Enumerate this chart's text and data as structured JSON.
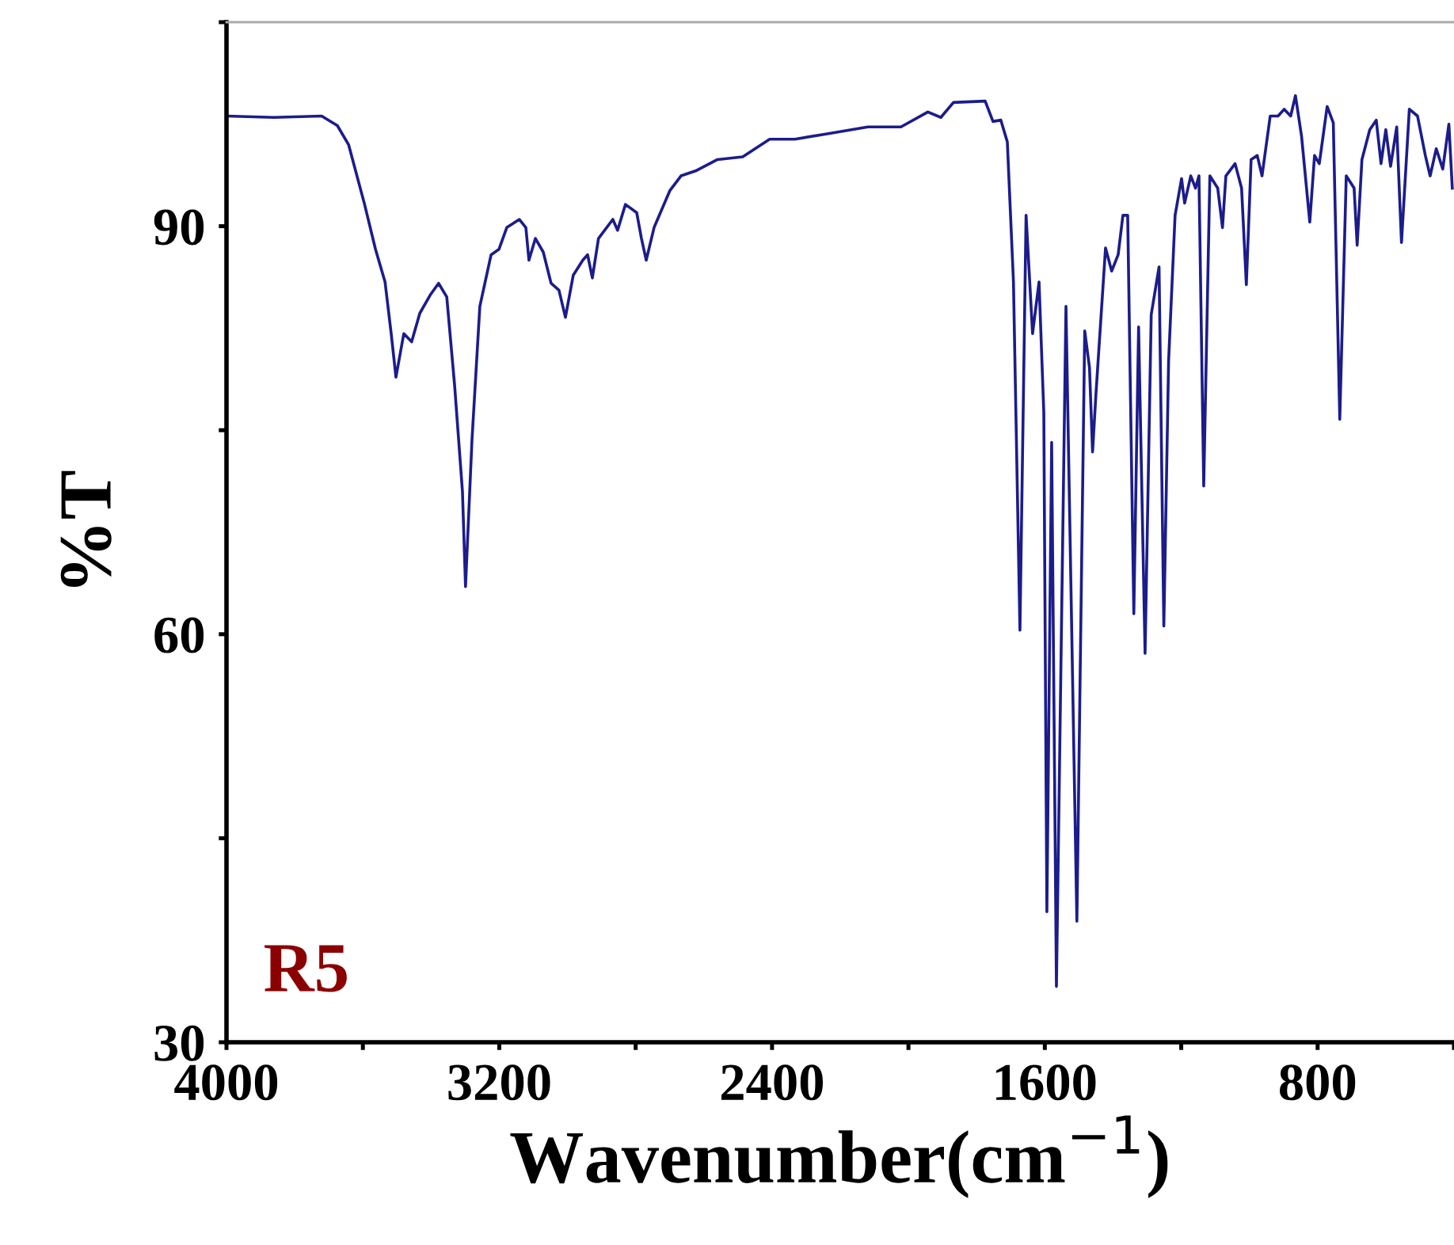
{
  "chart_data": {
    "type": "line",
    "xlabel": "Wavenumber(cm$^{−1}$)",
    "ylabel": "%T",
    "annotations": [
      "R5"
    ],
    "xlim": [
      4000,
      400
    ],
    "ylim": [
      30,
      105
    ],
    "xticks": [
      4000,
      {
        "value": 3600,
        "label": null
      },
      3200,
      {
        "value": 2800,
        "label": null
      },
      2400,
      {
        "value": 2000,
        "label": null
      },
      1600,
      {
        "value": 1200,
        "label": null
      },
      800,
      {
        "value": 400,
        "label": null
      }
    ],
    "yticks": [
      30,
      {
        "value": 45,
        "label": null
      },
      60,
      {
        "value": 75,
        "label": null
      },
      90,
      {
        "value": 105,
        "label": null
      }
    ],
    "grid": false,
    "legend": false,
    "marker": "none",
    "line_style": "solid",
    "series": [
      {
        "color": "#1c1c8c",
        "x": [
          4000,
          3861,
          3721,
          3675,
          3642,
          3596,
          3563,
          3535,
          3517,
          3503,
          3480,
          3457,
          3433,
          3401,
          3378,
          3354,
          3331,
          3308,
          3299,
          3280,
          3257,
          3224,
          3201,
          3178,
          3141,
          3122,
          3113,
          3094,
          3071,
          3048,
          3025,
          3006,
          2983,
          2955,
          2941,
          2927,
          2909,
          2867,
          2853,
          2830,
          2797,
          2783,
          2769,
          2746,
          2700,
          2667,
          2621,
          2560,
          2486,
          2407,
          2333,
          2235,
          2119,
          2022,
          1943,
          1905,
          1868,
          1775,
          1752,
          1729,
          1710,
          1692,
          1673,
          1655,
          1636,
          1617,
          1603,
          1594,
          1580,
          1566,
          1538,
          1506,
          1483,
          1469,
          1460,
          1450,
          1422,
          1404,
          1385,
          1371,
          1357,
          1339,
          1325,
          1306,
          1288,
          1265,
          1251,
          1237,
          1218,
          1199,
          1190,
          1172,
          1158,
          1148,
          1134,
          1116,
          1093,
          1079,
          1069,
          1042,
          1023,
          1009,
          995,
          977,
          963,
          939,
          916,
          898,
          879,
          865,
          847,
          823,
          809,
          795,
          772,
          754,
          735,
          716,
          693,
          684,
          670,
          647,
          628,
          614,
          600,
          586,
          568,
          554,
          531,
          507,
          484,
          470,
          452,
          433,
          415,
          405
        ],
        "values": [
          98.1,
          98.0,
          98.1,
          97.4,
          96.0,
          91.7,
          88.3,
          85.9,
          82.1,
          78.9,
          82.1,
          81.5,
          83.6,
          85.0,
          85.8,
          84.8,
          78.3,
          70.5,
          63.5,
          74.3,
          84.1,
          87.9,
          88.3,
          89.9,
          90.5,
          89.9,
          87.5,
          89.1,
          88.1,
          85.8,
          85.3,
          83.3,
          86.4,
          87.5,
          87.9,
          86.2,
          89.1,
          90.5,
          89.7,
          91.6,
          91.0,
          89.1,
          87.5,
          89.9,
          92.6,
          93.7,
          94.1,
          94.9,
          95.1,
          96.4,
          96.4,
          96.8,
          97.3,
          97.3,
          98.4,
          98.0,
          99.1,
          99.2,
          97.7,
          97.8,
          96.2,
          85.9,
          60.3,
          90.8,
          82.1,
          85.9,
          76.3,
          39.6,
          74.1,
          34.1,
          84.1,
          38.9,
          82.3,
          79.6,
          73.4,
          77.7,
          88.4,
          86.7,
          87.9,
          90.8,
          90.8,
          61.5,
          82.6,
          58.6,
          83.5,
          87.0,
          60.6,
          80.1,
          90.8,
          93.5,
          91.7,
          93.7,
          92.8,
          93.7,
          70.9,
          93.7,
          92.8,
          89.9,
          93.7,
          94.6,
          92.8,
          85.7,
          94.9,
          95.2,
          93.7,
          98.1,
          98.1,
          98.6,
          98.1,
          99.6,
          96.6,
          90.3,
          95.2,
          94.6,
          98.8,
          97.6,
          75.8,
          93.7,
          92.8,
          88.6,
          94.9,
          97.1,
          97.8,
          94.6,
          97.1,
          94.4,
          97.3,
          88.8,
          98.6,
          98.1,
          95.2,
          93.7,
          95.7,
          94.2,
          97.5,
          92.8
        ]
      }
    ]
  }
}
